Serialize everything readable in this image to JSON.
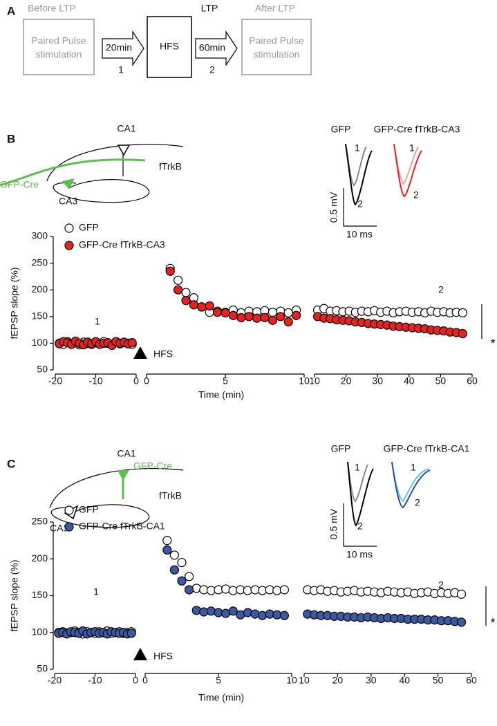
{
  "panel_a": {
    "label": "A",
    "before": "Before LTP",
    "box1": [
      "Paired Pulse",
      "stimulation"
    ],
    "arrow1": "20min",
    "step1": "1",
    "hfs": "HFS",
    "ltp": "LTP",
    "arrow2": "60min",
    "step2": "2",
    "after": "After LTP",
    "box2": [
      "Paired Pulse",
      "stimulation"
    ]
  },
  "panels": [
    {
      "label": "B",
      "schematic": {
        "ca1": "CA1",
        "ftrkb": "fTrkB",
        "gfp_cre": "GFP-Cre",
        "ca3": "CA3"
      },
      "inset": {
        "left_title": "GFP",
        "right_title": "GFP-Cre fTrkB-CA3",
        "left_1": "1",
        "left_2": "2",
        "right_1": "1",
        "right_2": "2",
        "scale_v": "0.5 mV",
        "scale_h": "10 ms"
      }
    },
    {
      "label": "C",
      "schematic": {
        "ca1": "CA1",
        "gfp_cre": "GFP-Cre",
        "ftrkb": "fTrkB",
        "ca3": "CA3"
      },
      "inset": {
        "left_title": "GFP",
        "right_title": "GFP-Cre fTrkB-CA1",
        "left_1": "1",
        "left_2": "2",
        "right_1": "1",
        "right_2": "2",
        "scale_v": "0.5 mV",
        "scale_h": "10 ms"
      }
    }
  ],
  "chart_data": [
    {
      "type": "scatter",
      "ylabel": "fEPSP slope (%)",
      "xlabel": "Time (min)",
      "ylim": [
        50,
        300
      ],
      "yticks": [
        50,
        100,
        150,
        200,
        250,
        300
      ],
      "x_segments": [
        {
          "xlim": [
            -20,
            0
          ],
          "xticks": [
            -20,
            -10,
            0
          ]
        },
        {
          "xlim": [
            0,
            10
          ],
          "xticks": [
            0,
            5,
            10
          ]
        },
        {
          "xlim": [
            10,
            60
          ],
          "xticks": [
            10,
            20,
            30,
            40,
            50,
            60
          ]
        }
      ],
      "annotations": [
        "1",
        "2",
        "HFS",
        "*"
      ],
      "x": [
        -19,
        -18,
        -17,
        -16,
        -15,
        -14,
        -13,
        -12,
        -11,
        -10,
        -9,
        -8,
        -7,
        -6,
        -5,
        -4,
        -3,
        -2,
        -1,
        1.5,
        2,
        2.5,
        3,
        3.5,
        4,
        4.5,
        5,
        5.5,
        6,
        6.5,
        7,
        7.5,
        8,
        8.5,
        9,
        9.5,
        11,
        13,
        15,
        17,
        19,
        21,
        23,
        25,
        27,
        29,
        31,
        33,
        35,
        37,
        39,
        41,
        43,
        45,
        47,
        49,
        51,
        53,
        55,
        57
      ],
      "series": [
        {
          "name": "GFP",
          "color": "#ffffff",
          "values": [
            100,
            98,
            103,
            99,
            101,
            97,
            102,
            100,
            98,
            101,
            99,
            103,
            100,
            97,
            102,
            99,
            101,
            100,
            98,
            240,
            218,
            195,
            185,
            168,
            158,
            160,
            158,
            162,
            157,
            160,
            159,
            161,
            158,
            160,
            157,
            162,
            162,
            165,
            160,
            161,
            159,
            160,
            158,
            160,
            159,
            161,
            158,
            160,
            157,
            159,
            160,
            158,
            159,
            157,
            160,
            158,
            159,
            157,
            158,
            157
          ]
        },
        {
          "name": "GFP-Cre fTrkB-CA3",
          "color": "#e8221f",
          "values": [
            99,
            103,
            101,
            98,
            104,
            100,
            97,
            102,
            99,
            103,
            98,
            100,
            101,
            96,
            103,
            100,
            102,
            99,
            101,
            235,
            200,
            180,
            172,
            168,
            170,
            158,
            157,
            152,
            148,
            150,
            147,
            148,
            143,
            150,
            140,
            152,
            150,
            147,
            146,
            144,
            143,
            142,
            140,
            139,
            137,
            136,
            135,
            134,
            132,
            131,
            130,
            129,
            128,
            127,
            125,
            124,
            123,
            121,
            120,
            118
          ]
        }
      ]
    },
    {
      "type": "scatter",
      "ylabel": "fEPSP slope (%)",
      "xlabel": "Time (min)",
      "ylim": [
        50,
        250
      ],
      "yticks": [
        50,
        100,
        150,
        200,
        250
      ],
      "x_segments": [
        {
          "xlim": [
            -20,
            0
          ],
          "xticks": [
            -20,
            -10,
            0
          ]
        },
        {
          "xlim": [
            0,
            10
          ],
          "xticks": [
            0,
            5,
            10
          ]
        },
        {
          "xlim": [
            10,
            60
          ],
          "xticks": [
            10,
            20,
            30,
            40,
            50,
            60
          ]
        }
      ],
      "annotations": [
        "1",
        "2",
        "HFS",
        "*"
      ],
      "x": [
        -19,
        -18,
        -17,
        -16,
        -15,
        -14,
        -13,
        -12,
        -11,
        -10,
        -9,
        -8,
        -7,
        -6,
        -5,
        -4,
        -3,
        -2,
        -1,
        1.5,
        2,
        2.5,
        3,
        3.5,
        4,
        4.5,
        5,
        5.5,
        6,
        6.5,
        7,
        7.5,
        8,
        8.5,
        9,
        9.5,
        11,
        13,
        15,
        17,
        19,
        21,
        23,
        25,
        27,
        29,
        31,
        33,
        35,
        37,
        39,
        41,
        43,
        45,
        47,
        49,
        51,
        53,
        55,
        57
      ],
      "series": [
        {
          "name": "GFP",
          "color": "#ffffff",
          "values": [
            100,
            101,
            99,
            100,
            102,
            100,
            98,
            101,
            100,
            99,
            101,
            100,
            102,
            99,
            100,
            101,
            99,
            100,
            101,
            225,
            205,
            195,
            176,
            160,
            158,
            157,
            158,
            159,
            157,
            158,
            157,
            158,
            157,
            158,
            157,
            158,
            158,
            157,
            158,
            156,
            157,
            155,
            156,
            157,
            155,
            156,
            155,
            154,
            156,
            155,
            154,
            155,
            153,
            154,
            155,
            153,
            154,
            153,
            154,
            152
          ]
        },
        {
          "name": "GFP-Cre fTrkB-CA1",
          "color": "#3b5aa6",
          "values": [
            99,
            100,
            98,
            101,
            100,
            99,
            102,
            98,
            100,
            101,
            99,
            100,
            98,
            101,
            100,
            99,
            100,
            98,
            99,
            212,
            185,
            170,
            158,
            130,
            128,
            129,
            127,
            126,
            129,
            124,
            127,
            125,
            123,
            125,
            124,
            123,
            125,
            124,
            123,
            123,
            122,
            122,
            121,
            121,
            120,
            121,
            120,
            119,
            120,
            119,
            119,
            118,
            118,
            118,
            117,
            117,
            116,
            116,
            115,
            114
          ]
        }
      ]
    }
  ]
}
